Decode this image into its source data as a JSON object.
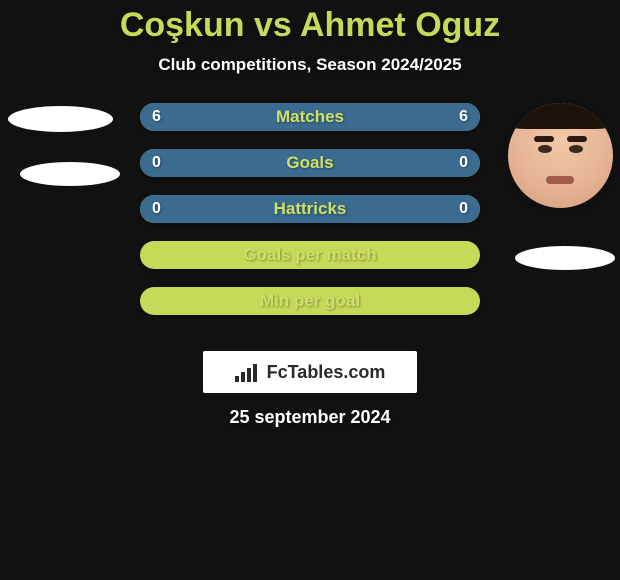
{
  "background_color": "#111111",
  "title": {
    "player1": "Coşkun",
    "vs": "vs",
    "player2": "Ahmet Oguz",
    "color": "#c7d958",
    "fontsize": 34
  },
  "subtitle": {
    "text": "Club competitions, Season 2024/2025",
    "color": "#ffffff",
    "fontsize": 17
  },
  "player_left": {
    "name": "Coşkun",
    "avatar_present": false
  },
  "player_right": {
    "name": "Ahmet Oguz",
    "avatar_present": true
  },
  "bar_style": {
    "height": 28,
    "radius": 16,
    "gap": 18,
    "label_color": "#cfe069",
    "label_fontsize": 17,
    "value_color": "#ffffff",
    "value_fontsize": 16,
    "track_color": "#c7d958",
    "fill_left_color": "#3b6b8f",
    "fill_right_color": "#3b6b8f",
    "shadow": "0 2px 3px rgba(0,0,0,0.25)"
  },
  "stats": [
    {
      "label": "Matches",
      "left_value": "6",
      "right_value": "6",
      "left_fill_pct": 50,
      "right_fill_pct": 50,
      "show_values": true
    },
    {
      "label": "Goals",
      "left_value": "0",
      "right_value": "0",
      "left_fill_pct": 50,
      "right_fill_pct": 50,
      "show_values": true
    },
    {
      "label": "Hattricks",
      "left_value": "0",
      "right_value": "0",
      "left_fill_pct": 50,
      "right_fill_pct": 50,
      "show_values": true
    },
    {
      "label": "Goals per match",
      "left_value": "",
      "right_value": "",
      "left_fill_pct": 0,
      "right_fill_pct": 0,
      "show_values": false
    },
    {
      "label": "Min per goal",
      "left_value": "",
      "right_value": "",
      "left_fill_pct": 0,
      "right_fill_pct": 0,
      "show_values": false
    }
  ],
  "watermark": {
    "text": "FcTables.com",
    "background": "#ffffff",
    "text_color": "#2a2a2a",
    "fontsize": 18,
    "icon_bars": [
      6,
      10,
      14,
      18
    ]
  },
  "date": {
    "text": "25 september 2024",
    "color": "#ffffff",
    "fontsize": 18
  }
}
